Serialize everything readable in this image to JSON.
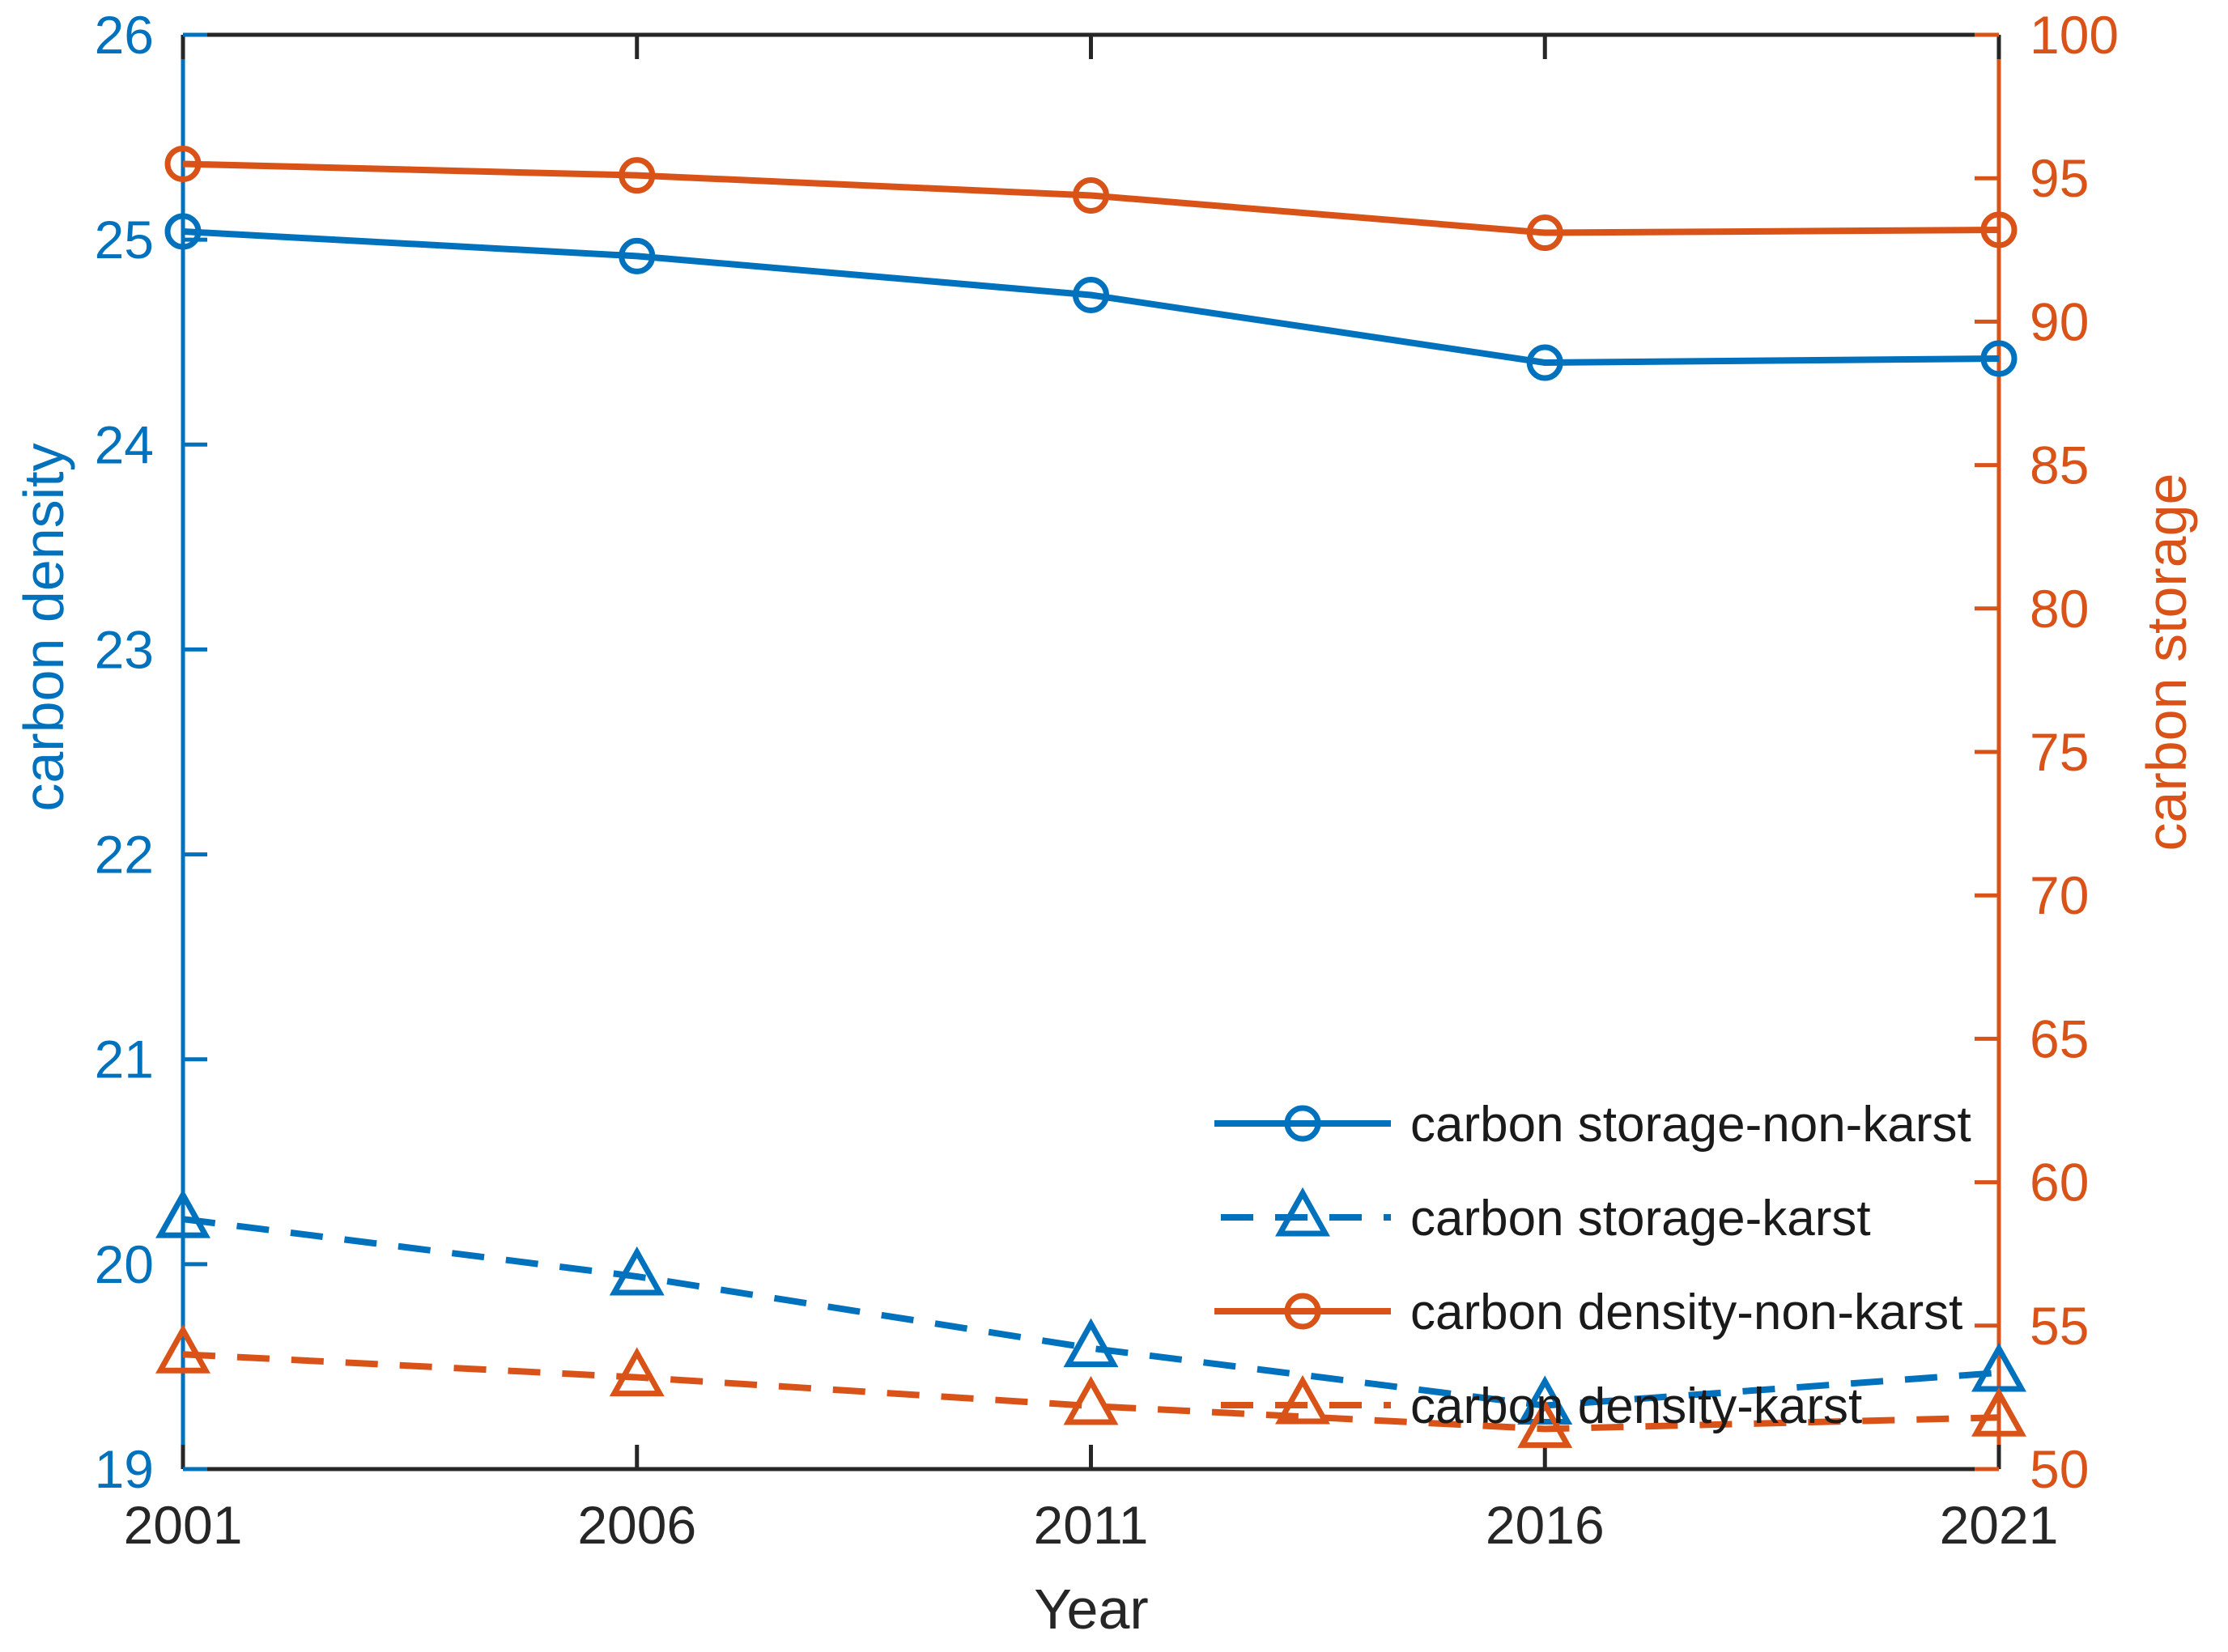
{
  "figure": {
    "background": "#ffffff",
    "frame_color": "#262626"
  },
  "chart_data": {
    "type": "line",
    "title": "",
    "x": [
      2001,
      2006,
      2011,
      2016,
      2021
    ],
    "x_axis": {
      "label": "Year",
      "ticks": [
        2001,
        2006,
        2011,
        2016,
        2021
      ],
      "color": "#262626"
    },
    "left_axis": {
      "label": "carbon density",
      "range": [
        19,
        26
      ],
      "ticks": [
        19,
        20,
        21,
        22,
        23,
        24,
        25,
        26
      ],
      "color": "#0072BD"
    },
    "right_axis": {
      "label": "carbon storage",
      "range": [
        50,
        100
      ],
      "ticks": [
        50,
        55,
        60,
        65,
        70,
        75,
        80,
        85,
        90,
        95,
        100
      ],
      "color": "#D95319"
    },
    "grid": false,
    "legend": {
      "position": "inside-lower-right",
      "box": false
    },
    "series": [
      {
        "name": "carbon storage-non-karst",
        "axis": "left",
        "color": "#0072BD",
        "line_style": "solid",
        "marker": "circle",
        "values": [
          25.04,
          24.92,
          24.73,
          24.4,
          24.42
        ]
      },
      {
        "name": "carbon storage-karst",
        "axis": "left",
        "color": "#0072BD",
        "line_style": "dashed",
        "marker": "triangle",
        "values": [
          20.22,
          19.94,
          19.59,
          19.31,
          19.47
        ]
      },
      {
        "name": "carbon density-non-karst",
        "axis": "right",
        "color": "#D95319",
        "line_style": "solid",
        "marker": "circle",
        "values": [
          95.5,
          95.1,
          94.4,
          93.1,
          93.2
        ]
      },
      {
        "name": "carbon density-karst",
        "axis": "right",
        "color": "#D95319",
        "line_style": "dashed",
        "marker": "triangle",
        "values": [
          54.0,
          53.2,
          52.2,
          51.4,
          51.8
        ]
      }
    ]
  }
}
